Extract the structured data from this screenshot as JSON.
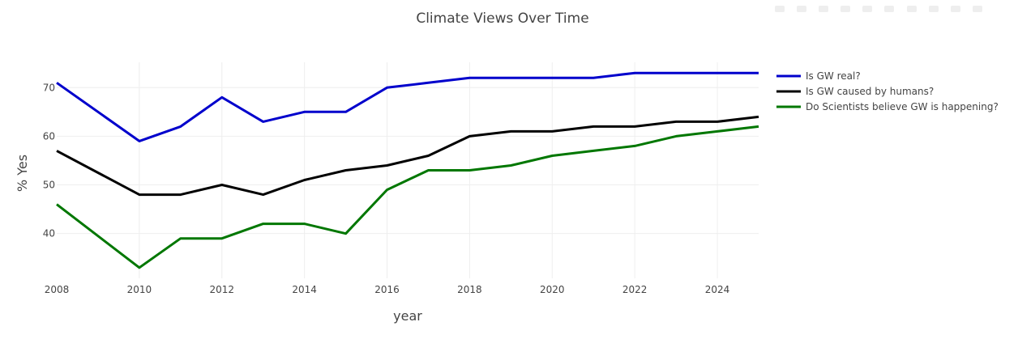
{
  "chart_data": {
    "type": "line",
    "title": "Climate Views Over Time",
    "xlabel": "year",
    "ylabel": "% Yes",
    "xlim": [
      2008,
      2025
    ],
    "ylim": [
      30.8,
      75.2
    ],
    "x_ticks": [
      2008,
      2010,
      2012,
      2014,
      2016,
      2018,
      2020,
      2022,
      2024
    ],
    "y_ticks": [
      40,
      50,
      60,
      70
    ],
    "grid": true,
    "legend_position": "top-right",
    "x": [
      2008,
      2010,
      2011,
      2012,
      2013,
      2014,
      2015,
      2016,
      2017,
      2018,
      2019,
      2020,
      2021,
      2022,
      2023,
      2024,
      2025
    ],
    "series": [
      {
        "name": "Is GW real?",
        "color": "#0000cc",
        "values": [
          71,
          59,
          62,
          68,
          63,
          65,
          65,
          70,
          71,
          72,
          72,
          72,
          72,
          73,
          73,
          73,
          73
        ]
      },
      {
        "name": "Is GW caused by humans?",
        "color": "#000000",
        "values": [
          57,
          48,
          48,
          50,
          48,
          51,
          53,
          54,
          56,
          60,
          61,
          61,
          62,
          62,
          63,
          63,
          64
        ]
      },
      {
        "name": "Do Scientists believe GW is happening?",
        "color": "#007700",
        "values": [
          46,
          33,
          39,
          39,
          42,
          42,
          40,
          49,
          53,
          53,
          54,
          56,
          57,
          58,
          60,
          61,
          62
        ]
      }
    ]
  }
}
